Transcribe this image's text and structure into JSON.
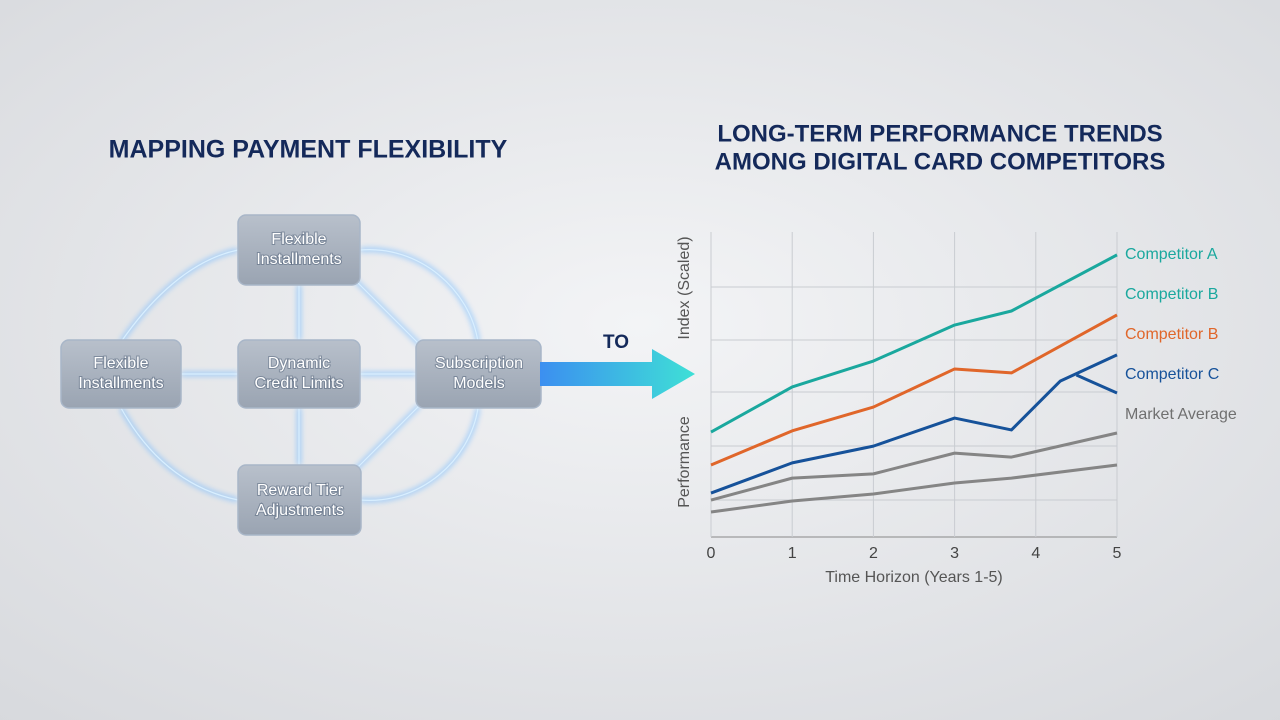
{
  "diagram": {
    "title": "MAPPING PAYMENT FLEXIBILITY",
    "nodes": [
      {
        "lines": [
          "Flexible",
          "Installments"
        ]
      },
      {
        "lines": [
          "Flexible",
          "Installments"
        ]
      },
      {
        "lines": [
          "Dynamic",
          "Credit Limits"
        ]
      },
      {
        "lines": [
          "Subscription",
          "Models"
        ]
      },
      {
        "lines": [
          "Reward Tier",
          "Adjustments"
        ]
      }
    ],
    "connector": "TO"
  },
  "chart_data": {
    "type": "line",
    "title": [
      "LONG-TERM PERFORMANCE TRENDS",
      "AMONG DIGITAL CARD COMPETITORS"
    ],
    "x_label": "Time Horizon (Years 1-5)",
    "y_label": [
      "Index (Scaled)",
      "Performance"
    ],
    "xlim": [
      0,
      5
    ],
    "xticks": [
      0,
      1,
      2,
      3,
      4,
      5
    ],
    "ylim": [
      0,
      100
    ],
    "grid": true,
    "series": [
      {
        "color": "#1aa89e",
        "x": [
          0,
          1,
          2,
          3,
          3.7,
          5
        ],
        "values": [
          34.4,
          49.2,
          57.7,
          69.5,
          74.1,
          92.5
        ]
      },
      {
        "color": "#e0662a",
        "x": [
          0,
          1,
          2,
          3,
          3.7,
          5
        ],
        "values": [
          23.6,
          34.8,
          42.6,
          55.1,
          53.8,
          72.8
        ]
      },
      {
        "color": "#16529a",
        "x": [
          0,
          1,
          2,
          3,
          3.7,
          4.3,
          5
        ],
        "values": [
          14.4,
          24.3,
          29.8,
          39.0,
          35.1,
          51.1,
          59.7
        ]
      },
      {
        "color": "#16529a",
        "x": [
          4.5,
          5
        ],
        "values": [
          53.1,
          47.2
        ]
      },
      {
        "color": "#858585",
        "x": [
          0,
          1,
          2,
          3,
          3.7,
          5
        ],
        "values": [
          12.1,
          19.3,
          20.7,
          27.5,
          26.2,
          34.1
        ]
      },
      {
        "color": "#858585",
        "x": [
          0,
          1,
          2,
          3,
          3.7,
          5
        ],
        "values": [
          8.2,
          11.8,
          14.1,
          17.7,
          19.3,
          23.6
        ]
      }
    ],
    "legend": [
      {
        "name": "Competitor A",
        "color": "#1aa89e"
      },
      {
        "name": "Competitor B",
        "color": "#1aa89e"
      },
      {
        "name": "Competitor B",
        "color": "#e0662a"
      },
      {
        "name": "Competitor C",
        "color": "#16529a"
      },
      {
        "name": "Market Average",
        "color": "#707070"
      }
    ]
  }
}
